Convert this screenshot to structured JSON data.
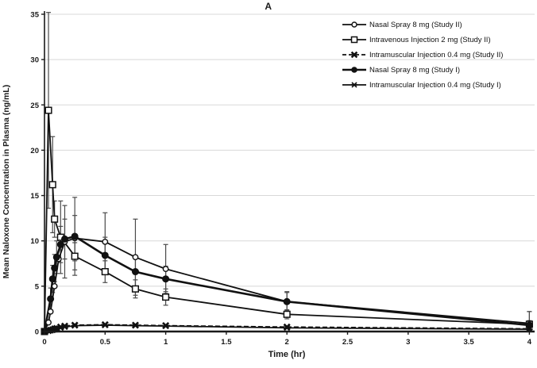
{
  "chart_data": {
    "type": "line",
    "title": "A",
    "xlabel": "Time (hr)",
    "ylabel": "Mean Naloxone Concentration in Plasma (ng/mL)",
    "xlim": [
      0,
      4
    ],
    "ylim": [
      0,
      35
    ],
    "xticks": {
      "values": [
        0,
        0.5,
        1,
        1.5,
        2,
        2.5,
        3,
        3.5,
        4
      ],
      "labels": [
        "0",
        "0.5",
        "1",
        "1.5",
        "2",
        "2.5",
        "3",
        "3.5",
        "4"
      ]
    },
    "yticks": {
      "values": [
        0,
        5,
        10,
        15,
        20,
        25,
        30,
        35
      ],
      "labels": [
        "0",
        "5",
        "10",
        "15",
        "20",
        "25",
        "30",
        "35"
      ]
    },
    "grid": "horizontal-only",
    "grid_color": "#d8d8d8",
    "axis_color": "#1a1a1a",
    "legend_position": "top-right-inside",
    "series": [
      {
        "name": "Nasal Spray 8 mg (Study II)",
        "marker": "open-circle",
        "dash": "solid",
        "x": [
          0,
          0.033,
          0.05,
          0.083,
          0.117,
          0.167,
          0.25,
          0.5,
          0.75,
          1,
          2,
          4
        ],
        "y": [
          0,
          1.0,
          2.2,
          5.0,
          8.0,
          9.9,
          10.3,
          9.9,
          8.2,
          6.9,
          3.3,
          0.9
        ],
        "sd": [
          0,
          0,
          0,
          0,
          0,
          4.0,
          2.5,
          3.2,
          4.2,
          2.7,
          1.1,
          1.3
        ]
      },
      {
        "name": "Intravenous Injection 2 mg (Study II)",
        "marker": "open-square",
        "dash": "solid",
        "x": [
          0,
          0.033,
          0.067,
          0.083,
          0.133,
          0.25,
          0.5,
          0.75,
          1,
          2,
          4
        ],
        "y": [
          0,
          24.4,
          16.2,
          12.4,
          10.4,
          8.3,
          6.6,
          4.7,
          3.8,
          1.9,
          0.8
        ],
        "sd": [
          0,
          10.8,
          5.3,
          2.0,
          4.0,
          1.5,
          1.2,
          1.0,
          0.9,
          0.5,
          0.4
        ]
      },
      {
        "name": "Intramuscular Injection 0.4 mg (Study II)",
        "marker": "bold-x",
        "dash": "dashed",
        "x": [
          0,
          0.033,
          0.05,
          0.067,
          0.083,
          0.1,
          0.133,
          0.167,
          0.25,
          0.5,
          0.75,
          1,
          2,
          4
        ],
        "y": [
          0,
          0.1,
          0.15,
          0.2,
          0.3,
          0.35,
          0.5,
          0.6,
          0.7,
          0.75,
          0.7,
          0.65,
          0.5,
          0.3
        ],
        "sd": [
          0,
          0,
          0,
          0,
          0,
          0,
          0,
          0,
          0,
          0,
          0,
          0,
          0,
          0
        ]
      },
      {
        "name": "Nasal Spray 8 mg (Study I)",
        "marker": "filled-circle",
        "dash": "solid",
        "x": [
          0,
          0.05,
          0.067,
          0.083,
          0.1,
          0.133,
          0.167,
          0.25,
          0.5,
          0.75,
          1,
          2,
          4
        ],
        "y": [
          0,
          3.6,
          5.8,
          7.0,
          8.2,
          9.6,
          10.2,
          10.5,
          8.4,
          6.6,
          5.8,
          3.3,
          0.7
        ],
        "sd": [
          0,
          1.2,
          1.5,
          1.5,
          1.8,
          2.0,
          2.2,
          4.3,
          2.0,
          1.6,
          1.4,
          1.0,
          1.5
        ]
      },
      {
        "name": "Intramuscular Injection 0.4 mg (Study I)",
        "marker": "star",
        "dash": "solid",
        "x": [
          0,
          0.033,
          0.05,
          0.067,
          0.083,
          0.1,
          0.133,
          0.167,
          0.25,
          0.5,
          0.75,
          1,
          2,
          4
        ],
        "y": [
          0,
          0.05,
          0.1,
          0.15,
          0.2,
          0.3,
          0.4,
          0.5,
          0.65,
          0.7,
          0.65,
          0.6,
          0.4,
          0.25
        ],
        "sd": [
          0,
          0,
          0,
          0,
          0,
          0,
          0,
          0,
          0,
          0,
          0,
          0,
          0,
          0
        ]
      }
    ]
  }
}
